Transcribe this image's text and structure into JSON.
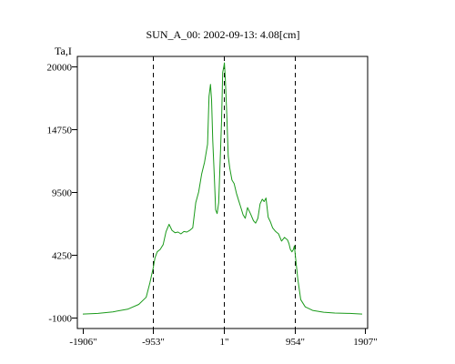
{
  "chart_data": {
    "type": "line",
    "title": "SUN_A_00: 2002-09-13: 4.08[cm]",
    "ylabel": "Ta,I",
    "xlabel": "",
    "x_unit": "arcsec",
    "xlim": [
      -1906,
      1907
    ],
    "ylim": [
      -1000,
      20500
    ],
    "grid": false,
    "x_ticks": [
      {
        "value": -1906,
        "label": "-1906\""
      },
      {
        "value": -953,
        "label": "-953\""
      },
      {
        "value": 1,
        "label": "1\""
      },
      {
        "value": 954,
        "label": "954\""
      },
      {
        "value": 1907,
        "label": "1907\""
      }
    ],
    "y_ticks": [
      {
        "value": 20000,
        "label": "20000"
      },
      {
        "value": 14750,
        "label": "14750"
      },
      {
        "value": 9500,
        "label": "9500"
      },
      {
        "value": 4250,
        "label": "4250"
      },
      {
        "value": -1000,
        "label": "-1000"
      }
    ],
    "reference_lines_x": [
      -953,
      1,
      954
    ],
    "series": [
      {
        "color": "#1a9a1a",
        "x": [
          -1906,
          -1700,
          -1500,
          -1300,
          -1150,
          -1050,
          -1000,
          -953,
          -930,
          -900,
          -860,
          -820,
          -780,
          -740,
          -700,
          -660,
          -620,
          -580,
          -540,
          -500,
          -460,
          -420,
          -380,
          -340,
          -300,
          -260,
          -220,
          -200,
          -180,
          -165,
          -150,
          -130,
          -110,
          -90,
          -70,
          -50,
          -30,
          -15,
          0,
          8,
          20,
          40,
          60,
          80,
          110,
          140,
          170,
          200,
          230,
          260,
          290,
          320,
          360,
          400,
          430,
          460,
          490,
          520,
          545,
          570,
          600,
          630,
          660,
          700,
          740,
          780,
          820,
          860,
          880,
          900,
          920,
          940,
          954,
          970,
          1000,
          1040,
          1100,
          1200,
          1350,
          1500,
          1700,
          1870
        ],
        "y": [
          -700,
          -650,
          -520,
          -300,
          100,
          700,
          1900,
          3200,
          4000,
          4500,
          4700,
          5100,
          6200,
          6800,
          6300,
          6100,
          6150,
          6000,
          6200,
          6150,
          6300,
          6500,
          8600,
          9500,
          11000,
          12000,
          13500,
          17500,
          18500,
          17200,
          13800,
          11000,
          8000,
          7700,
          8600,
          12000,
          15500,
          19500,
          20000,
          20300,
          19000,
          16000,
          12500,
          11500,
          10500,
          10200,
          9400,
          8800,
          8200,
          7600,
          7300,
          8200,
          7700,
          7100,
          6900,
          7300,
          8500,
          8900,
          8700,
          9000,
          7400,
          7000,
          6500,
          6200,
          6000,
          5400,
          5700,
          5500,
          5200,
          4700,
          4500,
          4700,
          5000,
          4000,
          2200,
          500,
          -100,
          -400,
          -550,
          -620,
          -650,
          -700
        ]
      }
    ]
  }
}
